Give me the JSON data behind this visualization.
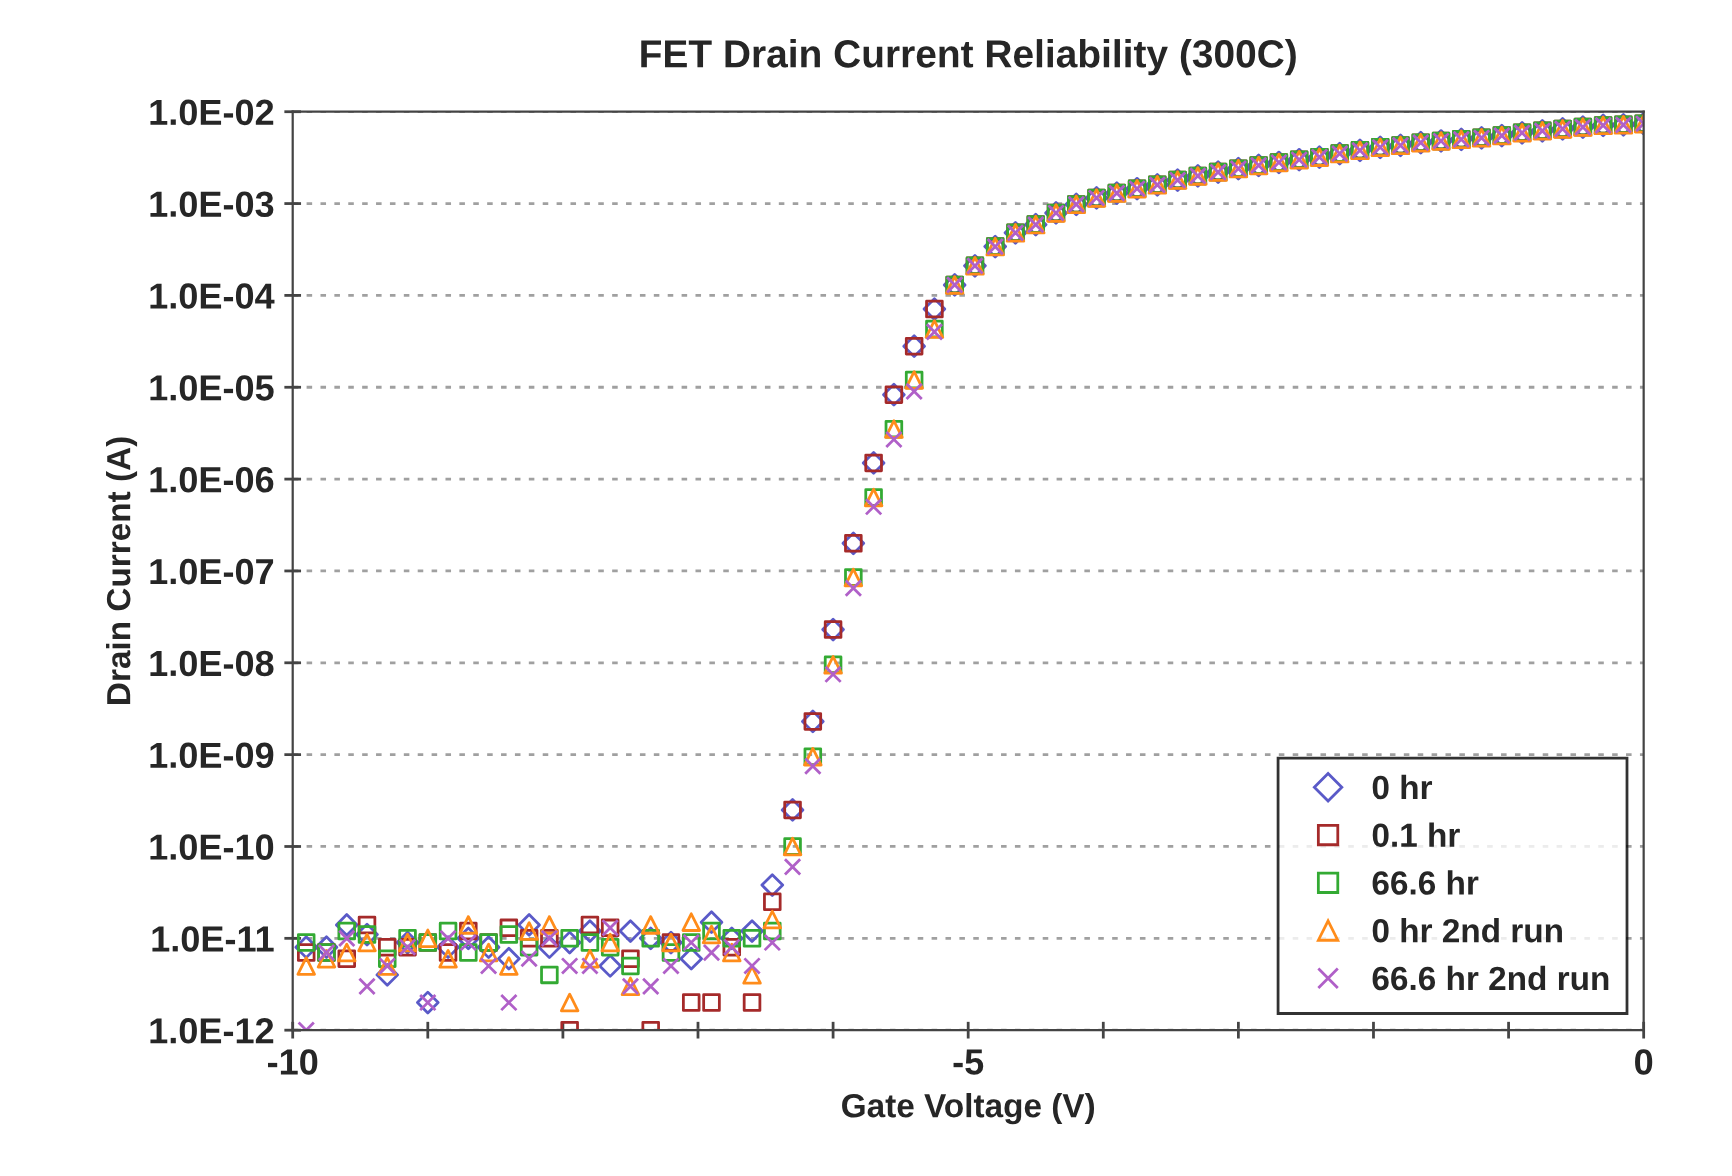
{
  "chart_data": {
    "type": "scatter",
    "title": "FET Drain Current Reliability (300C)",
    "xlabel": "Gate Voltage (V)",
    "ylabel": "Drain Current (A)",
    "log": "y",
    "grid": "y",
    "legend": "bottom right",
    "xlim": [
      -10,
      0
    ],
    "xticks": [
      -10,
      {
        "value": -9,
        "label": null
      },
      {
        "value": -8,
        "label": null
      },
      {
        "value": -7,
        "label": null
      },
      {
        "value": -6,
        "label": null
      },
      -5,
      {
        "value": -4,
        "label": null
      },
      {
        "value": -3,
        "label": null
      },
      {
        "value": -2,
        "label": null
      },
      {
        "value": -1,
        "label": null
      },
      0
    ],
    "ylim": [
      1e-12,
      0.01
    ],
    "yticks": [
      {
        "value": 1e-12,
        "label": "1.0E-12"
      },
      {
        "value": 1e-11,
        "label": "1.0E-11"
      },
      {
        "value": 1e-10,
        "label": "1.0E-10"
      },
      {
        "value": 1e-09,
        "label": "1.0E-09"
      },
      {
        "value": 1e-08,
        "label": "1.0E-08"
      },
      {
        "value": 1e-07,
        "label": "1.0E-07"
      },
      {
        "value": 1e-06,
        "label": "1.0E-06"
      },
      {
        "value": 1e-05,
        "label": "1.0E-05"
      },
      {
        "value": 0.0001,
        "label": "1.0E-04"
      },
      {
        "value": 0.001,
        "label": "1.0E-03"
      },
      {
        "value": 0.01,
        "label": "1.0E-02"
      }
    ],
    "x": [
      -9.9,
      -9.75,
      -9.6,
      -9.45,
      -9.3,
      -9.15,
      -9.0,
      -8.85,
      -8.7,
      -8.55,
      -8.4,
      -8.25,
      -8.1,
      -7.95,
      -7.8,
      -7.65,
      -7.5,
      -7.35,
      -7.2,
      -7.05,
      -6.9,
      -6.75,
      -6.6,
      -6.45,
      -6.3,
      -6.15,
      -6.0,
      -5.85,
      -5.7,
      -5.55,
      -5.4,
      -5.25,
      -5.1,
      -4.95,
      -4.8,
      -4.65,
      -4.5,
      -4.35,
      -4.2,
      -4.05,
      -3.9,
      -3.75,
      -3.6,
      -3.45,
      -3.3,
      -3.15,
      -3.0,
      -2.85,
      -2.7,
      -2.55,
      -2.4,
      -2.25,
      -2.1,
      -1.95,
      -1.8,
      -1.65,
      -1.5,
      -1.35,
      -1.2,
      -1.05,
      -0.9,
      -0.75,
      -0.6,
      -0.45,
      -0.3,
      -0.15,
      0.0
    ],
    "series": [
      {
        "name": "0 hr",
        "color": "#5a5ac8",
        "marker": "diamond",
        "values": [
          8e-12,
          8e-12,
          1.4e-11,
          1.1e-11,
          4e-12,
          9e-12,
          2e-12,
          8e-12,
          1e-11,
          8e-12,
          6e-12,
          1.4e-11,
          8e-12,
          9e-12,
          1.2e-11,
          5e-12,
          1.2e-11,
          1e-11,
          9e-12,
          6e-12,
          1.5e-11,
          1e-11,
          1.2e-11,
          3.8e-11,
          2.5e-10,
          2.3e-09,
          2.3e-08,
          2e-07,
          1.5e-06,
          8.3e-06,
          2.8e-05,
          7.1e-05,
          0.00013,
          0.00021,
          0.00034,
          0.00048,
          0.00059,
          0.00079,
          0.00098,
          0.00115,
          0.0013,
          0.00145,
          0.0016,
          0.0018,
          0.002,
          0.0022,
          0.0024,
          0.0026,
          0.0028,
          0.003,
          0.0032,
          0.0035,
          0.0038,
          0.0041,
          0.0043,
          0.0046,
          0.0048,
          0.005,
          0.0052,
          0.0055,
          0.0059,
          0.0062,
          0.0065,
          0.0068,
          0.0071,
          0.0072,
          0.0074
        ]
      },
      {
        "name": "0.1 hr",
        "color": "#a52a2a",
        "marker": "square",
        "values": [
          7e-12,
          7e-12,
          6e-12,
          1.4e-11,
          8e-12,
          8e-12,
          9e-12,
          7e-12,
          1.2e-11,
          9e-12,
          1.3e-11,
          1e-11,
          1e-11,
          1e-12,
          1.4e-11,
          1.3e-11,
          6e-12,
          1e-12,
          9e-12,
          2e-12,
          2e-12,
          8e-12,
          2e-12,
          2.5e-11,
          2.5e-10,
          2.3e-09,
          2.3e-08,
          2e-07,
          1.5e-06,
          8.3e-06,
          2.8e-05,
          7.1e-05,
          0.00013,
          0.00021,
          0.00034,
          0.00048,
          0.00059,
          0.00079,
          0.00098,
          0.00115,
          0.0013,
          0.00145,
          0.0016,
          0.0018,
          0.002,
          0.0022,
          0.0024,
          0.0026,
          0.0028,
          0.003,
          0.0032,
          0.0035,
          0.0038,
          0.0041,
          0.0043,
          0.0046,
          0.0048,
          0.005,
          0.0052,
          0.0055,
          0.0059,
          0.0062,
          0.0065,
          0.0068,
          0.0071,
          0.0072,
          0.0074
        ]
      },
      {
        "name": "66.6 hr",
        "color": "#33aa33",
        "marker": "square",
        "values": [
          9e-12,
          7e-12,
          1.2e-11,
          1.1e-11,
          6e-12,
          1e-11,
          9e-12,
          1.2e-11,
          7e-12,
          9e-12,
          1.1e-11,
          8e-12,
          4e-12,
          1e-11,
          9e-12,
          8e-12,
          5e-12,
          1e-11,
          7e-12,
          9e-12,
          1.2e-11,
          1e-11,
          1e-11,
          1.2e-11,
          1e-10,
          9.5e-10,
          9.5e-09,
          8.5e-08,
          6.3e-07,
          3.5e-06,
          1.2e-05,
          4.3e-05,
          0.00013,
          0.00021,
          0.00034,
          0.00048,
          0.00059,
          0.00079,
          0.00098,
          0.00115,
          0.0013,
          0.00145,
          0.0016,
          0.0018,
          0.002,
          0.0022,
          0.0024,
          0.0026,
          0.0028,
          0.003,
          0.0032,
          0.0035,
          0.0038,
          0.0041,
          0.0043,
          0.0046,
          0.0048,
          0.005,
          0.0052,
          0.0055,
          0.0059,
          0.0062,
          0.0065,
          0.0068,
          0.0071,
          0.0072,
          0.0074
        ]
      },
      {
        "name": "0 hr 2nd run",
        "color": "#ff8c1a",
        "marker": "triangle",
        "values": [
          5e-12,
          6e-12,
          7e-12,
          9e-12,
          5e-12,
          9e-12,
          1e-11,
          6e-12,
          1.4e-11,
          7e-12,
          5e-12,
          1.2e-11,
          1.4e-11,
          2e-12,
          6e-12,
          9e-12,
          3e-12,
          1.4e-11,
          9e-12,
          1.5e-11,
          1.1e-11,
          7e-12,
          4e-12,
          1.6e-11,
          1e-10,
          9.5e-10,
          9.5e-09,
          8.5e-08,
          6.3e-07,
          3.5e-06,
          1.2e-05,
          4.3e-05,
          0.00013,
          0.00021,
          0.00034,
          0.00048,
          0.00059,
          0.00079,
          0.00098,
          0.00115,
          0.0013,
          0.00145,
          0.0016,
          0.0018,
          0.002,
          0.0022,
          0.0024,
          0.0026,
          0.0028,
          0.003,
          0.0032,
          0.0035,
          0.0038,
          0.0041,
          0.0043,
          0.0046,
          0.0048,
          0.005,
          0.0052,
          0.0055,
          0.0059,
          0.0062,
          0.0065,
          0.0068,
          0.0071,
          0.0072,
          0.0074
        ]
      },
      {
        "name": "66.6 hr 2nd run",
        "color": "#b060c8",
        "marker": "cross",
        "values": [
          1e-12,
          7e-12,
          1e-11,
          3e-12,
          5e-12,
          8e-12,
          2e-12,
          1e-11,
          9e-12,
          5e-12,
          2e-12,
          6e-12,
          1e-11,
          5e-12,
          5e-12,
          1.3e-11,
          3e-12,
          3e-12,
          5e-12,
          9e-12,
          7e-12,
          8e-12,
          5e-12,
          9e-12,
          6e-11,
          7.5e-10,
          7.5e-09,
          6.5e-08,
          5e-07,
          2.7e-06,
          9e-06,
          4e-05,
          0.00013,
          0.00021,
          0.00034,
          0.00048,
          0.00059,
          0.00079,
          0.00098,
          0.00115,
          0.0013,
          0.00145,
          0.0016,
          0.0018,
          0.002,
          0.0022,
          0.0024,
          0.0026,
          0.0028,
          0.003,
          0.0032,
          0.0035,
          0.0038,
          0.0041,
          0.0043,
          0.0046,
          0.0048,
          0.005,
          0.0052,
          0.0055,
          0.0059,
          0.0062,
          0.0065,
          0.0068,
          0.0071,
          0.0072,
          0.0074
        ]
      }
    ]
  }
}
